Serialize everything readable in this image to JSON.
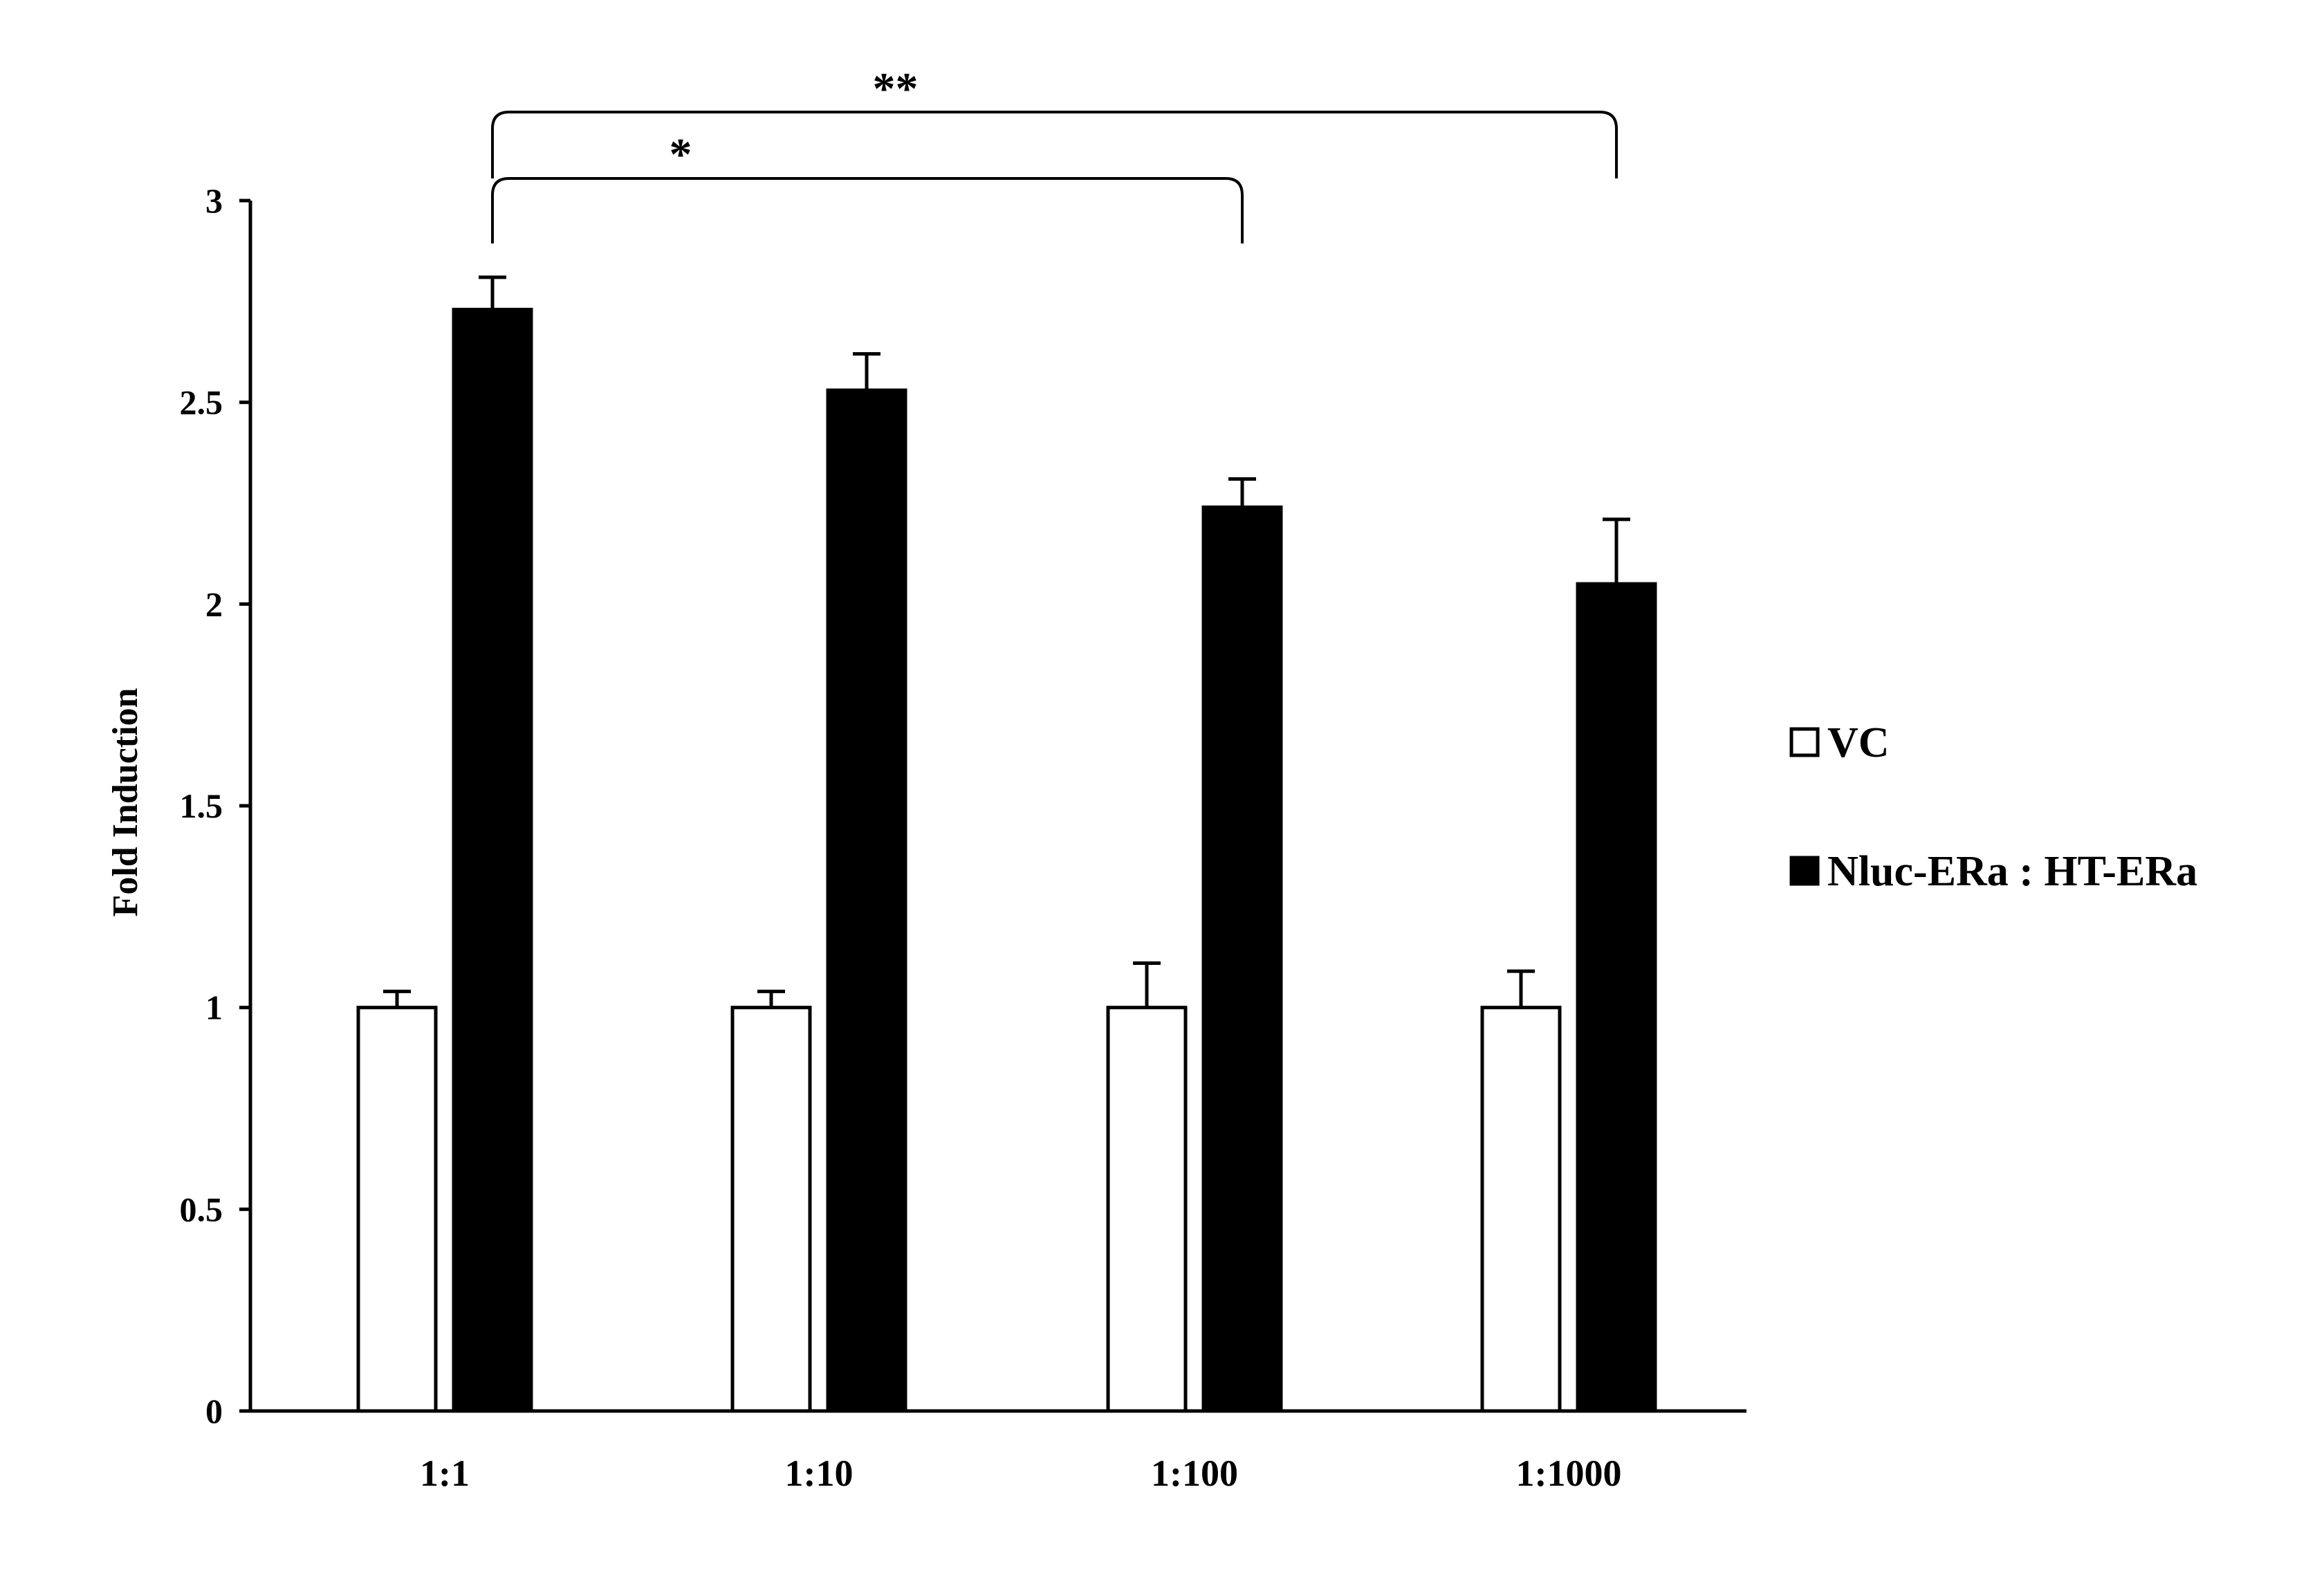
{
  "chart_data": {
    "type": "bar",
    "title": "",
    "xlabel": "",
    "ylabel": "Fold Induction",
    "ylim": [
      0,
      3
    ],
    "yticks": [
      "0",
      "0.5",
      "1",
      "1.5",
      "2",
      "2.5",
      "3"
    ],
    "categories": [
      "1:1",
      "1:10",
      "1:100",
      "1:1000"
    ],
    "series": [
      {
        "name": "VC",
        "fill": "#ffffff",
        "values": [
          1.0,
          1.0,
          1.0,
          1.0
        ],
        "errors": [
          0.04,
          0.04,
          0.11,
          0.09
        ]
      },
      {
        "name": "Nluc-ERa : HT-ERa",
        "fill": "#000000",
        "values": [
          2.73,
          2.53,
          2.24,
          2.05
        ],
        "errors": [
          0.08,
          0.09,
          0.07,
          0.16
        ]
      }
    ],
    "significance": [
      {
        "from": "1:1",
        "to": "1:100",
        "label": "*"
      },
      {
        "from": "1:1",
        "to": "1:1000",
        "label": "**"
      }
    ],
    "legend_position": "right",
    "grid": false
  }
}
